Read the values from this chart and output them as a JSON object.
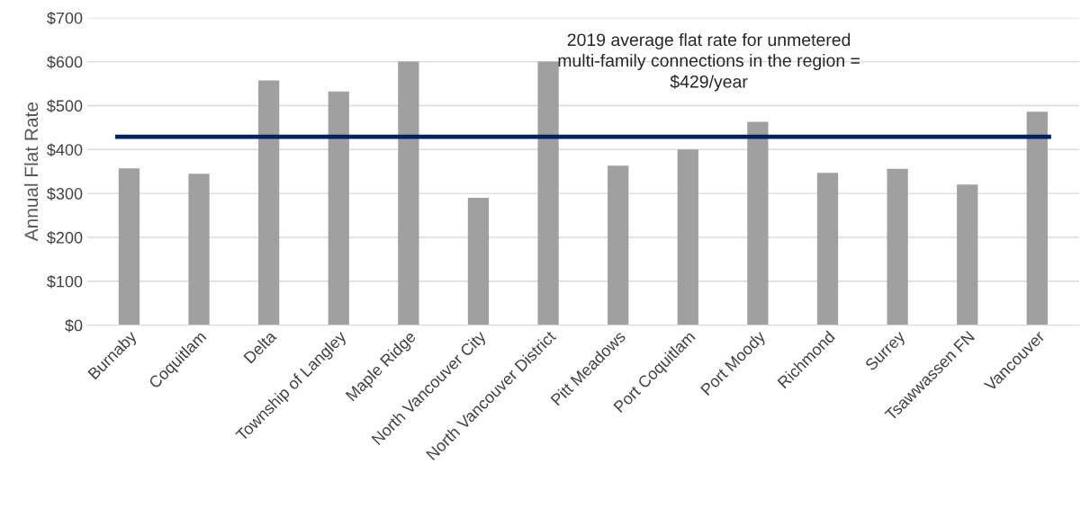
{
  "chart_data": {
    "type": "bar",
    "ylabel": "Annual Flat Rate",
    "categories": [
      "Burnaby",
      "Coquitlam",
      "Delta",
      "Township of Langley",
      "Maple Ridge",
      "North Vancouver City",
      "North Vancouver District",
      "Pitt Meadows",
      "Port Coquitlam",
      "Port Moody",
      "Richmond",
      "Surrey",
      "Tsawwassen FN",
      "Vancouver"
    ],
    "values": [
      357,
      345,
      557,
      532,
      600,
      290,
      600,
      363,
      400,
      463,
      347,
      356,
      320,
      486
    ],
    "color": "#a0a0a0",
    "ylim": [
      0,
      700
    ],
    "yticks": [
      {
        "value": 0,
        "label": "$0"
      },
      {
        "value": 100,
        "label": "$100"
      },
      {
        "value": 200,
        "label": "$200"
      },
      {
        "value": 300,
        "label": "$300"
      },
      {
        "value": 400,
        "label": "$400"
      },
      {
        "value": 500,
        "label": "$500"
      },
      {
        "value": 600,
        "label": "$600"
      },
      {
        "value": 700,
        "label": "$700"
      }
    ],
    "grid": "y",
    "ref_lines": [
      {
        "axis": "y",
        "value": 429,
        "label": "2019 average flat rate for unmetered\nmulti-family connections in the region =\n$429/year",
        "color": "#002060",
        "line_style": "solid"
      }
    ]
  }
}
